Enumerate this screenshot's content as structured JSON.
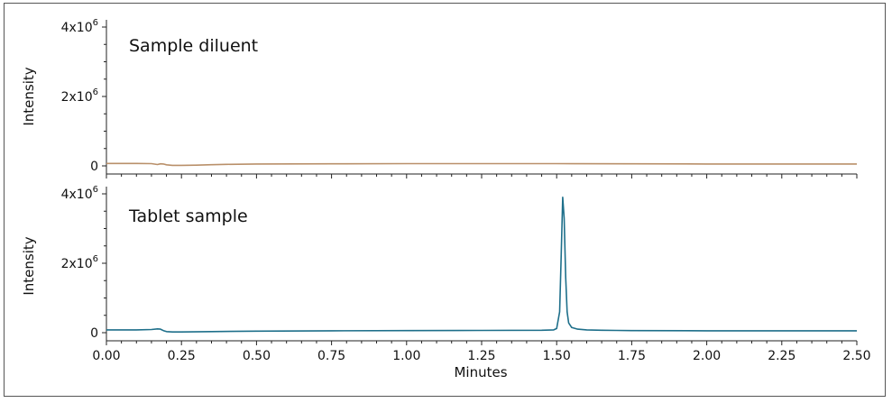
{
  "chart_data": [
    {
      "type": "line",
      "title": "Sample diluent",
      "ylabel": "Intensity",
      "xlabel": "",
      "xlim": [
        0.0,
        2.5
      ],
      "ylim": [
        0,
        4000000
      ],
      "yticks": [
        {
          "value": 4000000,
          "mantissa": "4x10",
          "exp": "6"
        },
        {
          "value": 2000000,
          "mantissa": "2x10",
          "exp": "6"
        },
        {
          "value": 0,
          "mantissa": "0",
          "exp": ""
        }
      ],
      "line_color": "#b9906a",
      "series": [
        {
          "x": [
            0.0,
            0.05,
            0.1,
            0.15,
            0.17,
            0.18,
            0.19,
            0.2,
            0.22,
            0.25,
            0.3,
            0.35,
            0.4,
            0.5,
            0.75,
            1.0,
            1.25,
            1.5,
            1.75,
            2.0,
            2.25,
            2.5
          ],
          "y": [
            70000,
            70000,
            70000,
            65000,
            40000,
            60000,
            55000,
            30000,
            15000,
            15000,
            20000,
            35000,
            45000,
            55000,
            60000,
            65000,
            65000,
            65000,
            60000,
            55000,
            55000,
            55000
          ]
        }
      ]
    },
    {
      "type": "line",
      "title": "Tablet sample",
      "ylabel": "Intensity",
      "xlabel": "Minutes",
      "xlim": [
        0.0,
        2.5
      ],
      "ylim": [
        0,
        4000000
      ],
      "xticks": [
        "0.00",
        "0.25",
        "0.50",
        "0.75",
        "1.00",
        "1.25",
        "1.50",
        "1.75",
        "2.00",
        "2.25",
        "2.50"
      ],
      "yticks": [
        {
          "value": 4000000,
          "mantissa": "4x10",
          "exp": "6"
        },
        {
          "value": 2000000,
          "mantissa": "2x10",
          "exp": "6"
        },
        {
          "value": 0,
          "mantissa": "0",
          "exp": ""
        }
      ],
      "line_color": "#1e6f8a",
      "series": [
        {
          "x": [
            0.0,
            0.05,
            0.1,
            0.15,
            0.17,
            0.18,
            0.19,
            0.2,
            0.22,
            0.25,
            0.35,
            0.5,
            0.75,
            1.0,
            1.25,
            1.45,
            1.49,
            1.5,
            1.51,
            1.515,
            1.52,
            1.525,
            1.53,
            1.535,
            1.54,
            1.55,
            1.57,
            1.6,
            1.65,
            1.7,
            1.75,
            2.0,
            2.25,
            2.5
          ],
          "y": [
            80000,
            80000,
            80000,
            90000,
            110000,
            100000,
            60000,
            30000,
            20000,
            20000,
            30000,
            45000,
            55000,
            60000,
            65000,
            70000,
            80000,
            120000,
            600000,
            2200000,
            3900000,
            3300000,
            1600000,
            600000,
            280000,
            150000,
            100000,
            80000,
            70000,
            65000,
            60000,
            55000,
            55000,
            55000
          ]
        }
      ]
    }
  ]
}
